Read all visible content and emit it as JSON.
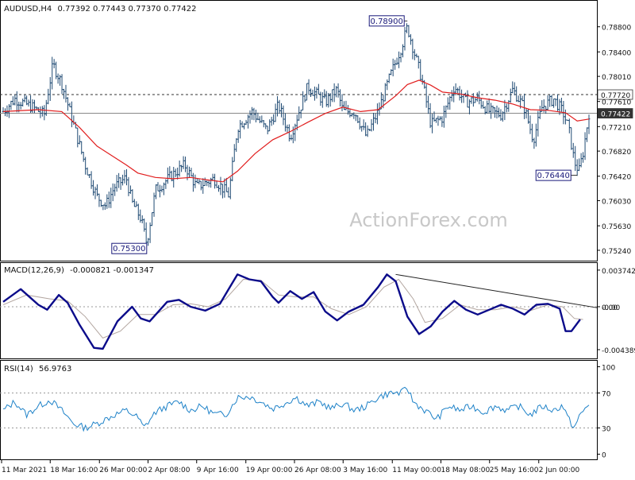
{
  "header": {
    "symbol": "AUDUSD,H4",
    "ohlc": "0.77392 0.77443 0.77370 0.77422"
  },
  "watermark": "ActionForex.com",
  "colors": {
    "bar": "#1f4a73",
    "ma": "#e11d1d",
    "macd": "#0b0b8a",
    "signal": "#b3a6a0",
    "rsi": "#1e82c8",
    "text": "#111111",
    "axis": "#555555",
    "grid": "#999999"
  },
  "chart_data": [
    {
      "type": "ohlc",
      "title": "AUDUSD,H4",
      "subtitle": "0.77392 0.77443 0.77370 0.77422",
      "y_ticks": [
        "0.78800",
        "0.78400",
        "0.78010",
        "0.77610",
        "0.77210",
        "0.76820",
        "0.76420",
        "0.76030",
        "0.75630",
        "0.75240"
      ],
      "y_tick_values": [
        0.788,
        0.784,
        0.7801,
        0.7761,
        0.7721,
        0.7682,
        0.7642,
        0.7603,
        0.7563,
        0.7524
      ],
      "ylim": [
        0.751,
        0.791
      ],
      "x_ticks": [
        "11 Mar 2021",
        "18 Mar 16:00",
        "26 Mar 00:00",
        "2 Apr 08:00",
        "9 Apr 16:00",
        "19 Apr 00:00",
        "26 Apr 08:00",
        "3 May 16:00",
        "11 May 00:00",
        "18 May 08:00",
        "25 May 16:00",
        "2 Jun 00:00"
      ],
      "x_tick_positions": [
        0,
        0.083,
        0.167,
        0.25,
        0.333,
        0.417,
        0.5,
        0.583,
        0.667,
        0.75,
        0.833,
        0.917
      ],
      "levels": [
        {
          "label": "0.77720",
          "value": 0.7772,
          "style": "dashed"
        },
        {
          "label": "0.77422",
          "value": 0.77422,
          "style": "solid"
        }
      ],
      "annotations": [
        {
          "label": "0.78900",
          "value": 0.789,
          "t": 0.69
        },
        {
          "label": "0.75300",
          "value": 0.753,
          "t": 0.245
        },
        {
          "label": "0.76440",
          "value": 0.7644,
          "t": 0.98
        }
      ],
      "price_path": [
        [
          0.0,
          0.7745
        ],
        [
          0.02,
          0.7765
        ],
        [
          0.05,
          0.7752
        ],
        [
          0.07,
          0.774
        ],
        [
          0.085,
          0.782
        ],
        [
          0.1,
          0.779
        ],
        [
          0.12,
          0.7725
        ],
        [
          0.14,
          0.766
        ],
        [
          0.16,
          0.761
        ],
        [
          0.175,
          0.7595
        ],
        [
          0.19,
          0.7625
        ],
        [
          0.21,
          0.764
        ],
        [
          0.22,
          0.76
        ],
        [
          0.235,
          0.7575
        ],
        [
          0.245,
          0.7535
        ],
        [
          0.26,
          0.762
        ],
        [
          0.29,
          0.7645
        ],
        [
          0.31,
          0.766
        ],
        [
          0.33,
          0.7625
        ],
        [
          0.36,
          0.7638
        ],
        [
          0.385,
          0.7612
        ],
        [
          0.4,
          0.772
        ],
        [
          0.425,
          0.7745
        ],
        [
          0.45,
          0.7715
        ],
        [
          0.47,
          0.7755
        ],
        [
          0.49,
          0.7705
        ],
        [
          0.52,
          0.7785
        ],
        [
          0.55,
          0.776
        ],
        [
          0.57,
          0.778
        ],
        [
          0.58,
          0.7745
        ],
        [
          0.6,
          0.7745
        ],
        [
          0.62,
          0.7705
        ],
        [
          0.64,
          0.7745
        ],
        [
          0.66,
          0.78
        ],
        [
          0.68,
          0.7848
        ],
        [
          0.69,
          0.788
        ],
        [
          0.7,
          0.7845
        ],
        [
          0.715,
          0.7795
        ],
        [
          0.73,
          0.7725
        ],
        [
          0.75,
          0.7735
        ],
        [
          0.77,
          0.7785
        ],
        [
          0.79,
          0.776
        ],
        [
          0.81,
          0.7765
        ],
        [
          0.83,
          0.7745
        ],
        [
          0.85,
          0.774
        ],
        [
          0.87,
          0.778
        ],
        [
          0.89,
          0.775
        ],
        [
          0.905,
          0.77
        ],
        [
          0.92,
          0.7752
        ],
        [
          0.94,
          0.7765
        ],
        [
          0.955,
          0.7745
        ],
        [
          0.965,
          0.772
        ],
        [
          0.975,
          0.7665
        ],
        [
          0.983,
          0.765
        ],
        [
          0.99,
          0.768
        ],
        [
          1.0,
          0.7742
        ]
      ],
      "moving_average": [
        [
          0.0,
          0.7745
        ],
        [
          0.06,
          0.7748
        ],
        [
          0.1,
          0.7745
        ],
        [
          0.13,
          0.772
        ],
        [
          0.16,
          0.769
        ],
        [
          0.19,
          0.7672
        ],
        [
          0.21,
          0.766
        ],
        [
          0.23,
          0.7647
        ],
        [
          0.26,
          0.764
        ],
        [
          0.29,
          0.7638
        ],
        [
          0.32,
          0.764
        ],
        [
          0.35,
          0.7636
        ],
        [
          0.375,
          0.7633
        ],
        [
          0.4,
          0.765
        ],
        [
          0.43,
          0.7678
        ],
        [
          0.46,
          0.77
        ],
        [
          0.49,
          0.7713
        ],
        [
          0.52,
          0.7728
        ],
        [
          0.55,
          0.7742
        ],
        [
          0.58,
          0.7752
        ],
        [
          0.61,
          0.7745
        ],
        [
          0.64,
          0.7748
        ],
        [
          0.67,
          0.777
        ],
        [
          0.69,
          0.7788
        ],
        [
          0.71,
          0.7795
        ],
        [
          0.73,
          0.7787
        ],
        [
          0.75,
          0.7776
        ],
        [
          0.78,
          0.7773
        ],
        [
          0.81,
          0.7767
        ],
        [
          0.84,
          0.7763
        ],
        [
          0.87,
          0.7757
        ],
        [
          0.9,
          0.7748
        ],
        [
          0.93,
          0.7747
        ],
        [
          0.96,
          0.7743
        ],
        [
          0.98,
          0.773
        ],
        [
          1.0,
          0.7733
        ]
      ]
    },
    {
      "type": "line",
      "title": "MACD(12,26,9)",
      "subtitle": "-0.000821 -0.001347",
      "y_ticks": [
        "0.003742",
        "0.00",
        "-0.004389"
      ],
      "y_tick_values": [
        0.003742,
        0.0,
        -0.004389
      ],
      "ylim": [
        -0.0052,
        0.0043
      ],
      "value_labels": [
        "-0.00"
      ],
      "series": [
        {
          "role": "macd",
          "points": [
            [
              0.0,
              0.0005
            ],
            [
              0.03,
              0.0018
            ],
            [
              0.06,
              0.0002
            ],
            [
              0.075,
              -0.0003
            ],
            [
              0.095,
              0.0012
            ],
            [
              0.11,
              0.0004
            ],
            [
              0.13,
              -0.0018
            ],
            [
              0.155,
              -0.0042
            ],
            [
              0.17,
              -0.0043
            ],
            [
              0.195,
              -0.0015
            ],
            [
              0.22,
              0.0
            ],
            [
              0.235,
              -0.0012
            ],
            [
              0.25,
              -0.0015
            ],
            [
              0.28,
              0.0005
            ],
            [
              0.3,
              0.0007
            ],
            [
              0.32,
              0.0
            ],
            [
              0.345,
              -0.0004
            ],
            [
              0.37,
              0.0003
            ],
            [
              0.385,
              0.0018
            ],
            [
              0.4,
              0.0033
            ],
            [
              0.42,
              0.0028
            ],
            [
              0.44,
              0.0026
            ],
            [
              0.46,
              0.001
            ],
            [
              0.47,
              0.0004
            ],
            [
              0.49,
              0.0016
            ],
            [
              0.51,
              0.0008
            ],
            [
              0.53,
              0.0015
            ],
            [
              0.55,
              -0.0005
            ],
            [
              0.57,
              -0.0014
            ],
            [
              0.59,
              -0.0005
            ],
            [
              0.615,
              0.0002
            ],
            [
              0.64,
              0.002
            ],
            [
              0.655,
              0.0033
            ],
            [
              0.67,
              0.0026
            ],
            [
              0.69,
              -0.001
            ],
            [
              0.71,
              -0.0028
            ],
            [
              0.73,
              -0.002
            ],
            [
              0.75,
              -0.0005
            ],
            [
              0.77,
              0.0006
            ],
            [
              0.79,
              -0.0003
            ],
            [
              0.81,
              -0.0008
            ],
            [
              0.83,
              -0.0003
            ],
            [
              0.85,
              0.0002
            ],
            [
              0.87,
              -0.0002
            ],
            [
              0.89,
              -0.0008
            ],
            [
              0.91,
              0.0002
            ],
            [
              0.93,
              0.0003
            ],
            [
              0.95,
              -0.0002
            ],
            [
              0.96,
              -0.0025
            ],
            [
              0.97,
              -0.0025
            ],
            [
              0.985,
              -0.0013
            ]
          ]
        },
        {
          "role": "signal",
          "points": [
            [
              0.0,
              0.0002
            ],
            [
              0.04,
              0.0012
            ],
            [
              0.08,
              0.0008
            ],
            [
              0.11,
              0.0006
            ],
            [
              0.14,
              -0.001
            ],
            [
              0.17,
              -0.0032
            ],
            [
              0.2,
              -0.0025
            ],
            [
              0.23,
              -0.0008
            ],
            [
              0.26,
              -0.0008
            ],
            [
              0.29,
              0.0002
            ],
            [
              0.32,
              0.0003
            ],
            [
              0.35,
              0.0
            ],
            [
              0.38,
              0.0008
            ],
            [
              0.41,
              0.0028
            ],
            [
              0.44,
              0.0027
            ],
            [
              0.47,
              0.0012
            ],
            [
              0.5,
              0.001
            ],
            [
              0.53,
              0.001
            ],
            [
              0.56,
              -0.0002
            ],
            [
              0.59,
              -0.0008
            ],
            [
              0.62,
              0.0
            ],
            [
              0.65,
              0.002
            ],
            [
              0.675,
              0.0028
            ],
            [
              0.7,
              0.0008
            ],
            [
              0.72,
              -0.0016
            ],
            [
              0.75,
              -0.0012
            ],
            [
              0.78,
              0.0002
            ],
            [
              0.81,
              -0.0003
            ],
            [
              0.84,
              -0.0003
            ],
            [
              0.87,
              0.0
            ],
            [
              0.9,
              -0.0004
            ],
            [
              0.93,
              0.0002
            ],
            [
              0.955,
              0.0
            ],
            [
              0.975,
              -0.0012
            ],
            [
              0.99,
              -0.0013
            ]
          ]
        }
      ],
      "trendline": [
        [
          0.67,
          0.0033
        ],
        [
          1.0,
          -0.0001
        ]
      ]
    },
    {
      "type": "line",
      "title": "RSI(14)",
      "subtitle": "56.9763",
      "y_ticks": [
        "100",
        "70",
        "30",
        "0"
      ],
      "y_tick_values": [
        100,
        70,
        30,
        0
      ],
      "ylim": [
        -5,
        105
      ],
      "guides": [
        70,
        30
      ],
      "series": [
        {
          "role": "rsi",
          "points": [
            [
              0.0,
              50
            ],
            [
              0.02,
              60
            ],
            [
              0.04,
              45
            ],
            [
              0.06,
              55
            ],
            [
              0.08,
              62
            ],
            [
              0.1,
              50
            ],
            [
              0.12,
              35
            ],
            [
              0.14,
              30
            ],
            [
              0.16,
              35
            ],
            [
              0.175,
              40
            ],
            [
              0.19,
              45
            ],
            [
              0.21,
              50
            ],
            [
              0.23,
              42
            ],
            [
              0.24,
              30
            ],
            [
              0.26,
              48
            ],
            [
              0.28,
              55
            ],
            [
              0.3,
              60
            ],
            [
              0.32,
              50
            ],
            [
              0.34,
              55
            ],
            [
              0.36,
              46
            ],
            [
              0.38,
              45
            ],
            [
              0.4,
              65
            ],
            [
              0.42,
              66
            ],
            [
              0.44,
              60
            ],
            [
              0.46,
              52
            ],
            [
              0.48,
              58
            ],
            [
              0.5,
              65
            ],
            [
              0.52,
              55
            ],
            [
              0.54,
              60
            ],
            [
              0.56,
              52
            ],
            [
              0.58,
              58
            ],
            [
              0.6,
              50
            ],
            [
              0.62,
              55
            ],
            [
              0.64,
              65
            ],
            [
              0.66,
              70
            ],
            [
              0.68,
              70
            ],
            [
              0.69,
              76
            ],
            [
              0.7,
              60
            ],
            [
              0.72,
              50
            ],
            [
              0.74,
              40
            ],
            [
              0.76,
              55
            ],
            [
              0.78,
              50
            ],
            [
              0.8,
              55
            ],
            [
              0.82,
              48
            ],
            [
              0.84,
              55
            ],
            [
              0.86,
              50
            ],
            [
              0.88,
              55
            ],
            [
              0.9,
              45
            ],
            [
              0.92,
              55
            ],
            [
              0.94,
              50
            ],
            [
              0.955,
              56
            ],
            [
              0.965,
              40
            ],
            [
              0.975,
              30
            ],
            [
              0.985,
              45
            ],
            [
              1.0,
              57
            ]
          ]
        }
      ]
    }
  ]
}
